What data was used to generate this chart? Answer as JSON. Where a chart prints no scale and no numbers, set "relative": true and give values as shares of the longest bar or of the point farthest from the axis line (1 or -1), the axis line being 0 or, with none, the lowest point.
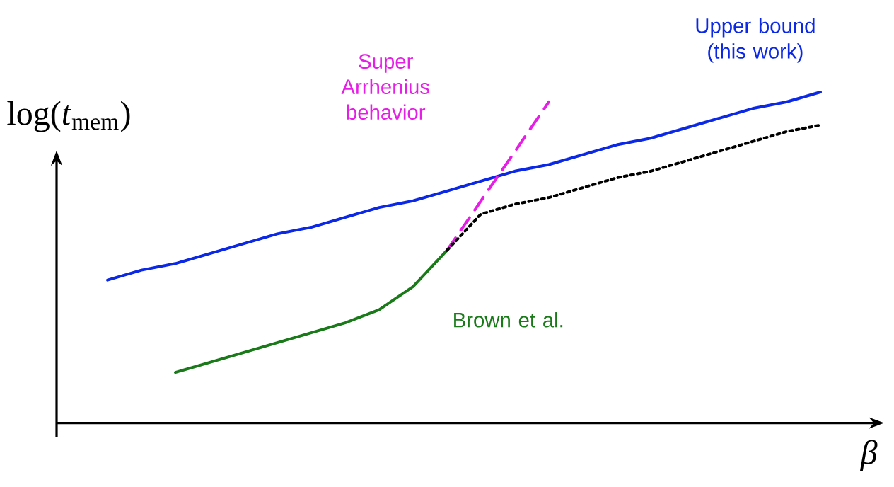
{
  "chart_data": {
    "type": "line",
    "relative": true,
    "xlabel": "β",
    "ylabel": "log(*t*$_{mem}$)",
    "categories": [
      null,
      null,
      null,
      null,
      null,
      null,
      null,
      null,
      null,
      null,
      null,
      null,
      null,
      null,
      null,
      null,
      null,
      null,
      null,
      null,
      null,
      null
    ],
    "series": [
      {
        "name": "Upper bound (this work)",
        "color": "#0a28e6",
        "line_style": "solid",
        "values": [
          0.43,
          0.46,
          0.48,
          0.51,
          0.54,
          0.57,
          0.59,
          0.62,
          0.65,
          0.67,
          0.7,
          0.73,
          0.76,
          0.78,
          0.81,
          0.84,
          0.86,
          0.89,
          0.92,
          0.95,
          0.97,
          1.0
        ]
      },
      {
        "name": "Super Arrhenius behavior",
        "color": "#e61ee6",
        "line_style": "dashed",
        "values": [
          null,
          null,
          null,
          null,
          null,
          null,
          null,
          null,
          null,
          null,
          0.52,
          0.67,
          0.82,
          0.97,
          null,
          null,
          null,
          null,
          null,
          null,
          null,
          null
        ]
      },
      {
        "name": "Brown et al.",
        "color": "#1a7a1a",
        "line_style": "solid",
        "values": [
          null,
          null,
          0.15,
          0.18,
          0.21,
          0.24,
          0.27,
          0.3,
          0.34,
          0.41,
          0.52,
          null,
          null,
          null,
          null,
          null,
          null,
          null,
          null,
          null,
          null,
          null
        ]
      },
      {
        "color": "#000000",
        "line_style": "dotted",
        "values": [
          null,
          null,
          null,
          null,
          null,
          null,
          null,
          null,
          null,
          null,
          0.52,
          0.63,
          0.66,
          0.68,
          0.71,
          0.74,
          0.76,
          0.79,
          0.82,
          0.85,
          0.88,
          0.9
        ]
      }
    ]
  }
}
